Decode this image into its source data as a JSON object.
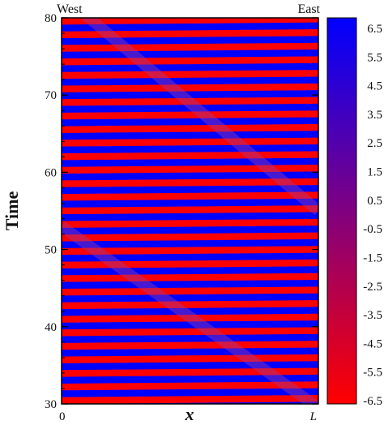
{
  "chart_data": {
    "type": "heatmap",
    "ylabel": "Time",
    "xlabel": "x",
    "ylim": [
      30,
      80
    ],
    "y_ticks": [
      "30",
      "40",
      "50",
      "60",
      "70",
      "80"
    ],
    "x_ticks": [
      "0",
      "L"
    ],
    "corner_labels": {
      "left": "West",
      "right": "East"
    },
    "colorbar": {
      "min": -6.5,
      "max": 6.5,
      "ticks": [
        "6.5",
        "5.5",
        "4.5",
        "3.5",
        "2.5",
        "1.5",
        "0.5",
        "-0.5",
        "-1.5",
        "-2.5",
        "-3.5",
        "-4.5",
        "-5.5",
        "-6.5"
      ],
      "colors": {
        "low": "#ff0000",
        "mid": "#800080",
        "high": "#0000ff"
      }
    },
    "stripes": {
      "count": 57,
      "first": "red",
      "x_drift_fraction": 0.16
    },
    "defect_lines": [
      {
        "name": "upper",
        "t_start_x0": 83.0,
        "t_end_xL": 55.0
      },
      {
        "name": "lower",
        "t_start_x0": 53.0,
        "t_end_xL": 29.5
      }
    ]
  }
}
